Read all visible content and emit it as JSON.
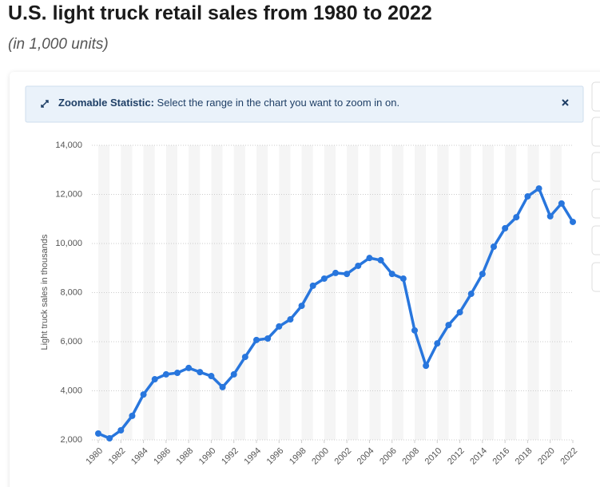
{
  "banner": {
    "label": "Zoomable Statistic:",
    "text": "Select the range in the chart you want to zoom in on."
  },
  "chart_data": {
    "type": "line",
    "title": "U.S. light truck retail sales from 1980 to 2022",
    "subtitle": "(in 1,000 units)",
    "y_label": "Light truck sales in thousands",
    "x": [
      1980,
      1981,
      1982,
      1983,
      1984,
      1985,
      1986,
      1987,
      1988,
      1989,
      1990,
      1991,
      1992,
      1993,
      1994,
      1995,
      1996,
      1997,
      1998,
      1999,
      2000,
      2001,
      2002,
      2003,
      2004,
      2005,
      2006,
      2007,
      2008,
      2009,
      2010,
      2011,
      2012,
      2013,
      2014,
      2015,
      2016,
      2017,
      2018,
      2019,
      2020,
      2021,
      2022
    ],
    "series": [
      {
        "name": "Light truck sales",
        "color": "#2876dd",
        "values": [
          2260,
          2065,
          2390,
          2980,
          3850,
          4470,
          4670,
          4730,
          4930,
          4760,
          4600,
          4150,
          4670,
          5380,
          6070,
          6130,
          6620,
          6910,
          7460,
          8280,
          8570,
          8800,
          8760,
          9090,
          9410,
          9320,
          8760,
          8570,
          6460,
          5020,
          5930,
          6680,
          7200,
          7950,
          8760,
          9870,
          10620,
          11070,
          11920,
          12240,
          11110,
          11630,
          10880
        ]
      }
    ],
    "xlim": [
      1980,
      2022
    ],
    "xticks": [
      1980,
      1982,
      1984,
      1986,
      1988,
      1990,
      1992,
      1994,
      1996,
      1998,
      2000,
      2002,
      2004,
      2006,
      2008,
      2010,
      2012,
      2014,
      2016,
      2018,
      2020,
      2022
    ],
    "ylim": [
      2000,
      14000
    ],
    "yticks": [
      {
        "value": 2000,
        "label": "2,000"
      },
      {
        "value": 4000,
        "label": "4,000"
      },
      {
        "value": 6000,
        "label": "6,000"
      },
      {
        "value": 8000,
        "label": "8,000"
      },
      {
        "value": 10000,
        "label": "10,000"
      },
      {
        "value": 12000,
        "label": "12,000"
      },
      {
        "value": 14000,
        "label": "14,000"
      }
    ],
    "grid": true
  }
}
